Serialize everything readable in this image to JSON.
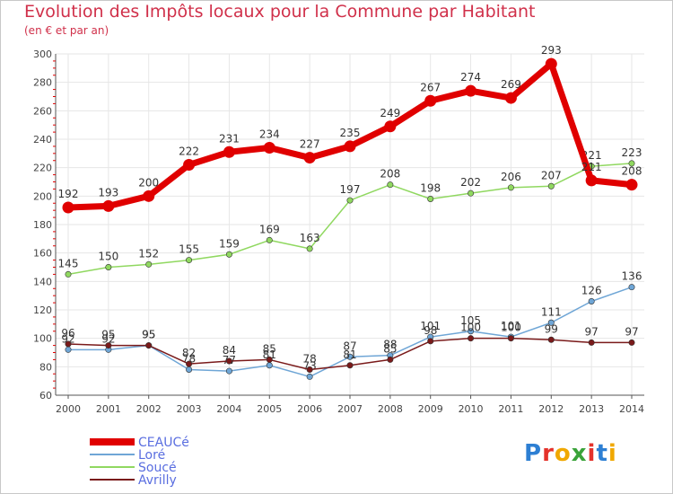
{
  "header": {
    "title": "Evolution des Impôts locaux pour la Commune par Habitant",
    "subtitle": "(en € et par an)"
  },
  "logo": {
    "text": "Proxiti"
  },
  "chart_data": {
    "type": "line",
    "x": [
      2000,
      2001,
      2002,
      2003,
      2004,
      2005,
      2006,
      2007,
      2008,
      2009,
      2010,
      2011,
      2012,
      2013,
      2014
    ],
    "ylim": [
      60,
      300
    ],
    "yticks": [
      60,
      80,
      100,
      120,
      140,
      160,
      180,
      200,
      220,
      240,
      260,
      280,
      300
    ],
    "grid": true,
    "legend_position": "bottom-left",
    "series": [
      {
        "name": "CEAUCé",
        "color": "#e00000",
        "values": [
          192,
          193,
          200,
          222,
          231,
          234,
          227,
          235,
          249,
          267,
          274,
          269,
          293,
          211,
          208
        ],
        "labels": [
          "192",
          "193",
          "200",
          "222",
          "231",
          "234",
          "227",
          "235",
          "249",
          "267",
          "274",
          "269",
          "293",
          "211",
          "208"
        ]
      },
      {
        "name": "Loré",
        "color": "#6fa6d6",
        "values": [
          92,
          92,
          95,
          78,
          77,
          81,
          73,
          87,
          88,
          101,
          105,
          101,
          111,
          126,
          136
        ],
        "labels": [
          "92",
          "92",
          "95",
          "78",
          "77",
          "81",
          "73",
          "87",
          "88",
          "101",
          "105",
          "101",
          "111",
          "126",
          "136"
        ]
      },
      {
        "name": "Soucé",
        "color": "#90d860",
        "values": [
          145,
          150,
          152,
          155,
          159,
          169,
          163,
          197,
          208,
          198,
          202,
          206,
          207,
          221,
          223
        ],
        "labels": [
          "145",
          "150",
          "152",
          "155",
          "159",
          "169",
          "163",
          "197",
          "208",
          "198",
          "202",
          "206",
          "207",
          "221",
          "223"
        ]
      },
      {
        "name": "Avrilly",
        "color": "#7a1a1a",
        "values": [
          96,
          95,
          95,
          82,
          84,
          85,
          78,
          81,
          85,
          98,
          100,
          100,
          99,
          97,
          97
        ],
        "labels": [
          "96",
          "95",
          "95",
          "82",
          "84",
          "85",
          "78",
          "81",
          "85",
          "98",
          "100",
          "100",
          "99",
          "97",
          "97"
        ]
      }
    ]
  }
}
